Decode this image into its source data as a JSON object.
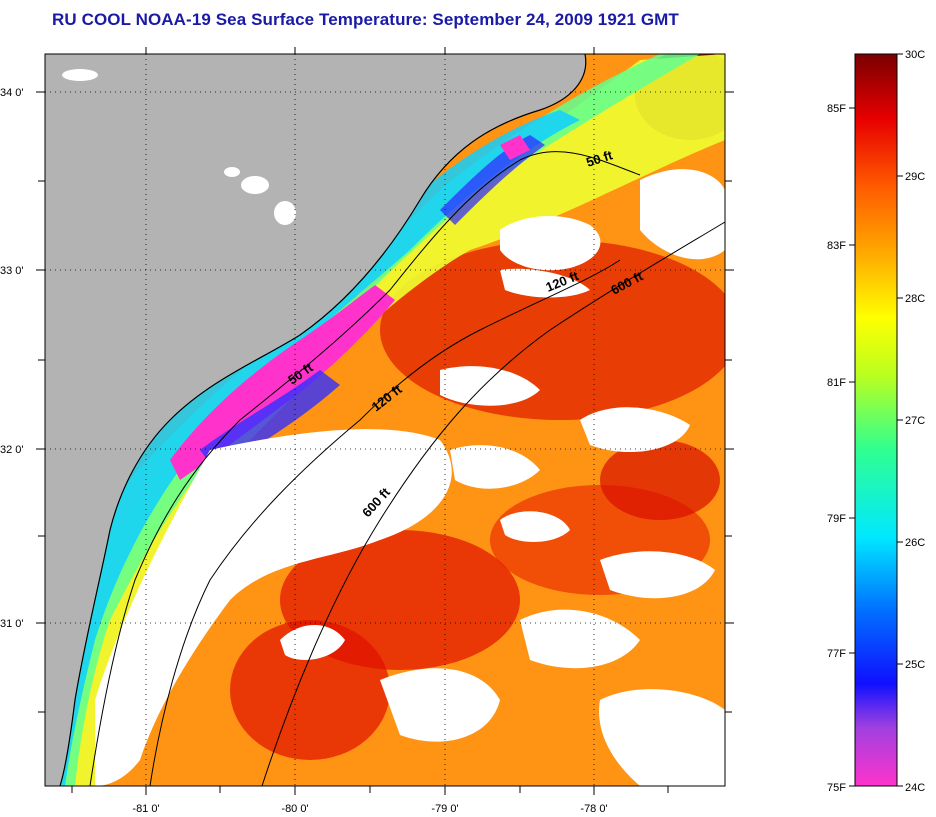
{
  "title": "RU COOL  NOAA-19  Sea Surface Temperature:  September 24, 2009 1921 GMT",
  "map": {
    "lat_ticks": [
      "34 0'",
      "33 0'",
      "32 0'",
      "31 0'"
    ],
    "lon_ticks": [
      "-81 0'",
      "-80 0'",
      "-79 0'",
      "-78 0'"
    ],
    "lat_range": [
      30.8,
      34.2
    ],
    "lon_range": [
      -81.5,
      -77.3
    ],
    "contours": [
      {
        "label": "50 ft",
        "kind": "isobath"
      },
      {
        "label": "120 ft",
        "kind": "isobath"
      },
      {
        "label": "600 ft",
        "kind": "isobath"
      }
    ],
    "contour_labels": [
      "50 ft",
      "50 ft",
      "120 ft",
      "120 ft",
      "600 ft",
      "600 ft"
    ],
    "colors": {
      "land": "#b3b3b3",
      "cloud": "#ffffff",
      "cold_patch": "#ff33cc"
    }
  },
  "colorbar": {
    "fahrenheit_labels": [
      "85F",
      "83F",
      "81F",
      "79F",
      "77F",
      "75F"
    ],
    "celsius_labels": [
      "30C",
      "29C",
      "28C",
      "27C",
      "26C",
      "25C",
      "24C"
    ],
    "scale_min_c": 24,
    "scale_max_c": 30
  }
}
